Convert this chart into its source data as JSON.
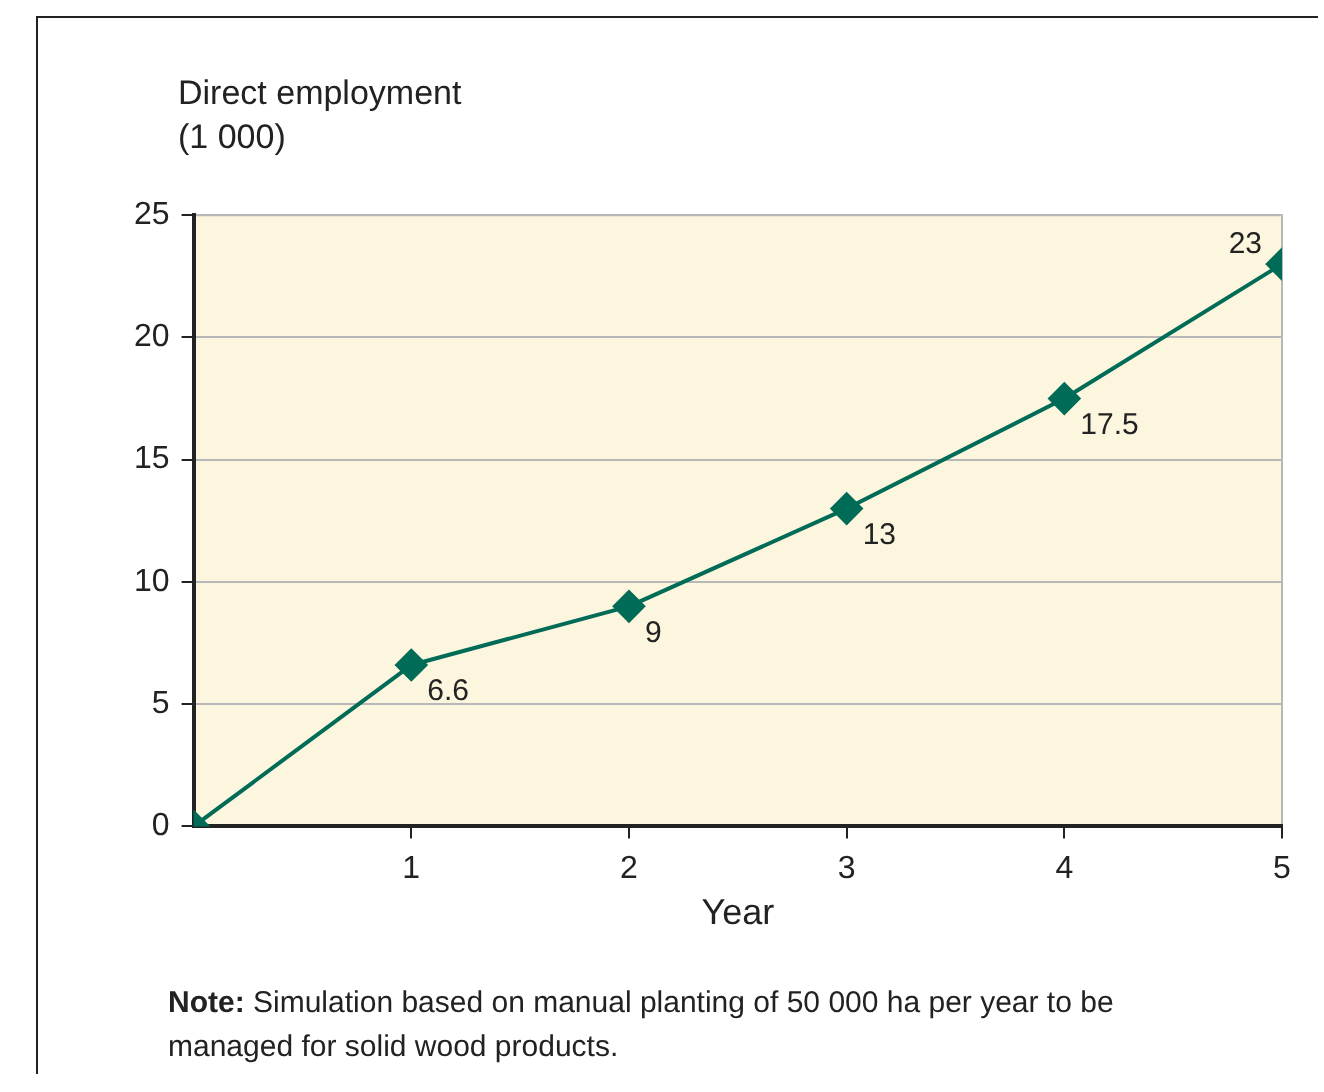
{
  "chart_data": {
    "type": "line",
    "ylabel": "Direct employment\n(1 000)",
    "xlabel": "Year",
    "x": [
      0,
      1,
      2,
      3,
      4,
      5
    ],
    "series": [
      {
        "color": "#006b56",
        "values": [
          0,
          6.6,
          9,
          13,
          17.5,
          23
        ],
        "value_labels": [
          null,
          "6.6",
          "9",
          "13",
          "17.5",
          "23"
        ]
      }
    ],
    "xlim": [
      0,
      5
    ],
    "xticks": [
      1,
      2,
      3,
      4,
      5
    ],
    "ylim": [
      0,
      25
    ],
    "yticks": [
      0,
      5,
      10,
      15,
      20,
      25
    ],
    "grid": "y",
    "legend": false,
    "marker": "diamond",
    "line_style": "solid",
    "annotations": [
      "Note: Simulation based on manual planting of 50 000 ha per year to be managed for solid wood products."
    ]
  }
}
